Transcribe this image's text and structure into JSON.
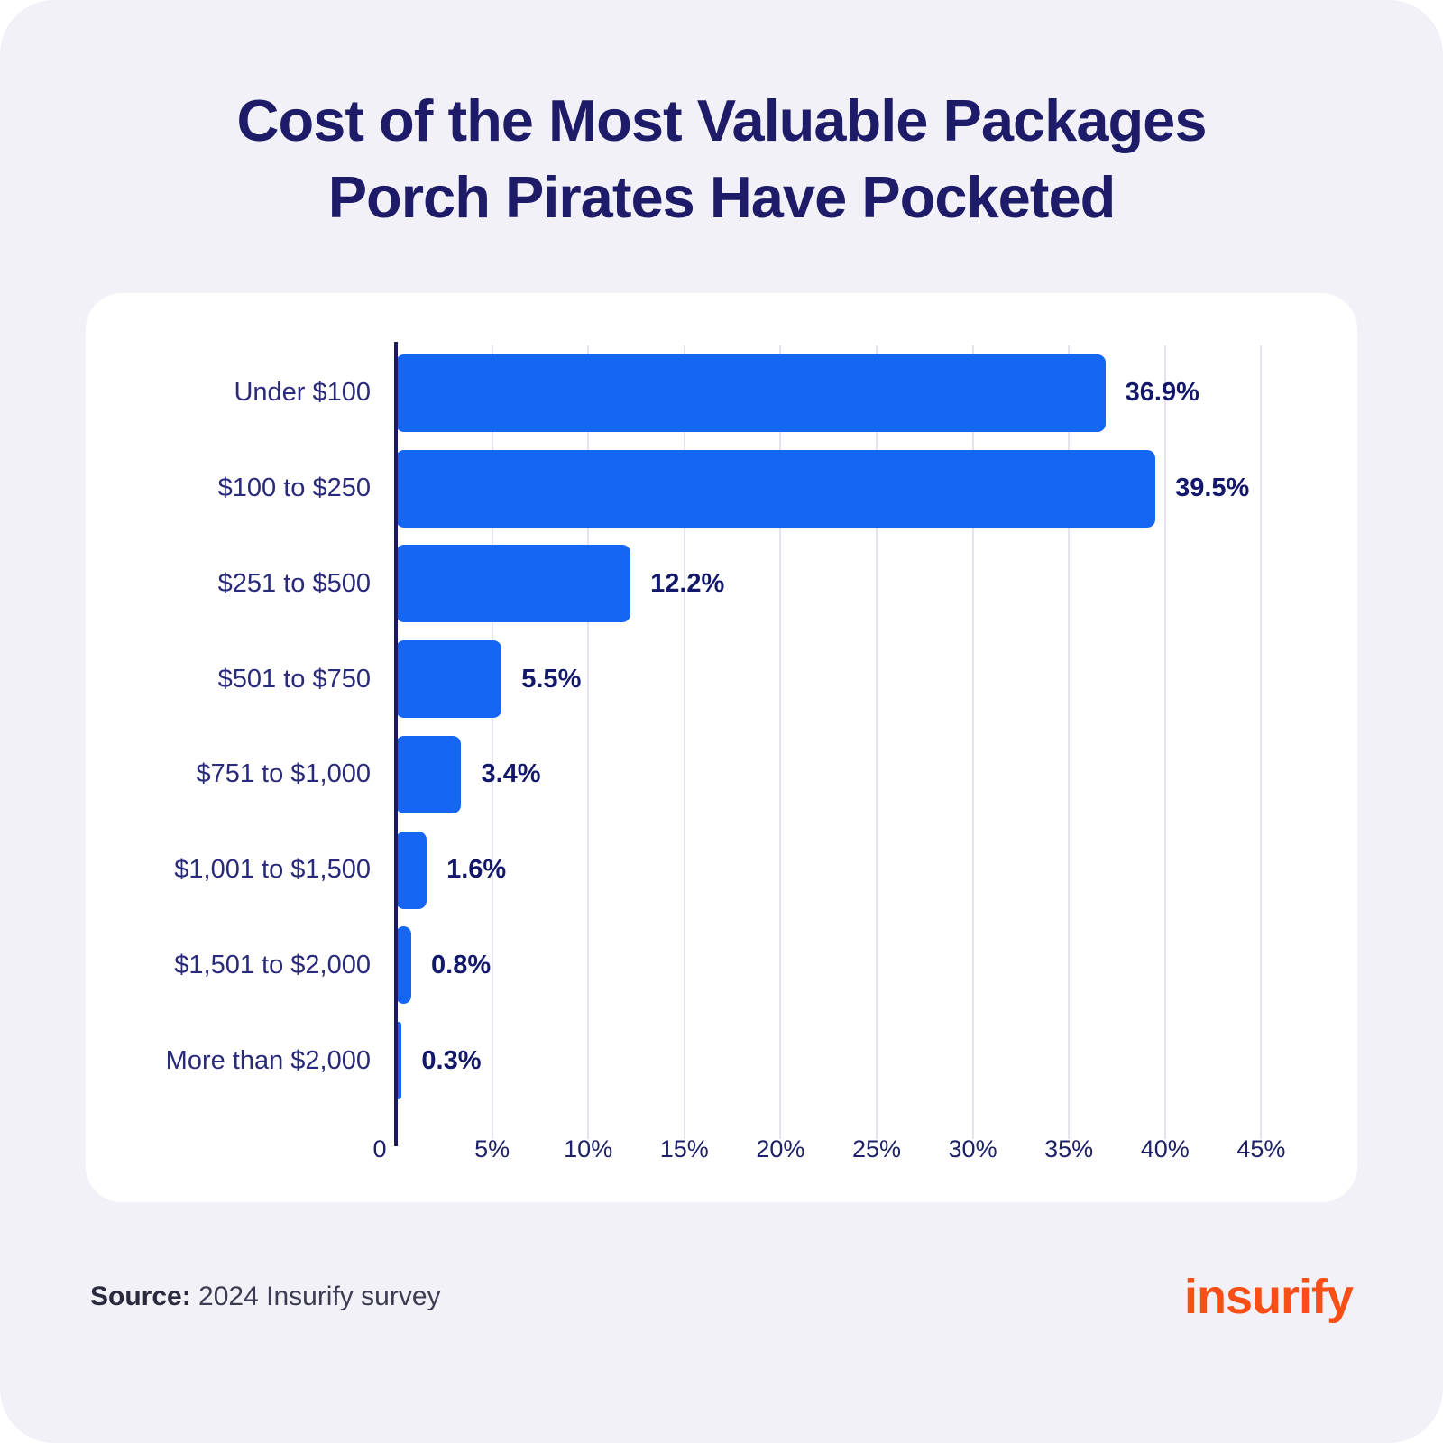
{
  "page": {
    "background": "#F2F1F7"
  },
  "title": {
    "text": "Cost of the Most Valuable Packages Porch Pirates Have Pocketed",
    "line1": "Cost of the Most Valuable Packages",
    "line2": "Porch Pirates Have Pocketed",
    "color": "#1E1B68"
  },
  "chart_data": {
    "type": "bar",
    "orientation": "horizontal",
    "title": "Cost of the Most Valuable Packages Porch Pirates Have Pocketed",
    "categories": [
      "Under $100",
      "$100 to $250",
      "$251 to $500",
      "$501 to $750",
      "$751 to $1,000",
      "$1,001 to $1,500",
      "$1,501 to $2,000",
      "More than $2,000"
    ],
    "values": [
      36.9,
      39.5,
      12.2,
      5.5,
      3.4,
      1.6,
      0.8,
      0.3
    ],
    "value_labels": [
      "36.9%",
      "39.5%",
      "12.2%",
      "5.5%",
      "3.4%",
      "1.6%",
      "0.8%",
      "0.3%"
    ],
    "xlabel": "",
    "ylabel": "",
    "xlim": [
      0,
      47
    ],
    "grid": "vertical",
    "legend": "none",
    "bar_color": "#1567F3",
    "axis_color": "#1C1A5E",
    "ticks": [
      {
        "value": 0,
        "label": "0"
      },
      {
        "value": 5,
        "label": "5%"
      },
      {
        "value": 10,
        "label": "10%"
      },
      {
        "value": 15,
        "label": "15%"
      },
      {
        "value": 20,
        "label": "20%"
      },
      {
        "value": 25,
        "label": "25%"
      },
      {
        "value": 30,
        "label": "30%"
      },
      {
        "value": 35,
        "label": "35%"
      },
      {
        "value": 40,
        "label": "40%"
      },
      {
        "value": 45,
        "label": "45%"
      }
    ]
  },
  "footer": {
    "source_label": "Source:",
    "source_text": " 2024 Insurify survey",
    "brand": "insurify",
    "brand_color": "#FA4E17"
  }
}
